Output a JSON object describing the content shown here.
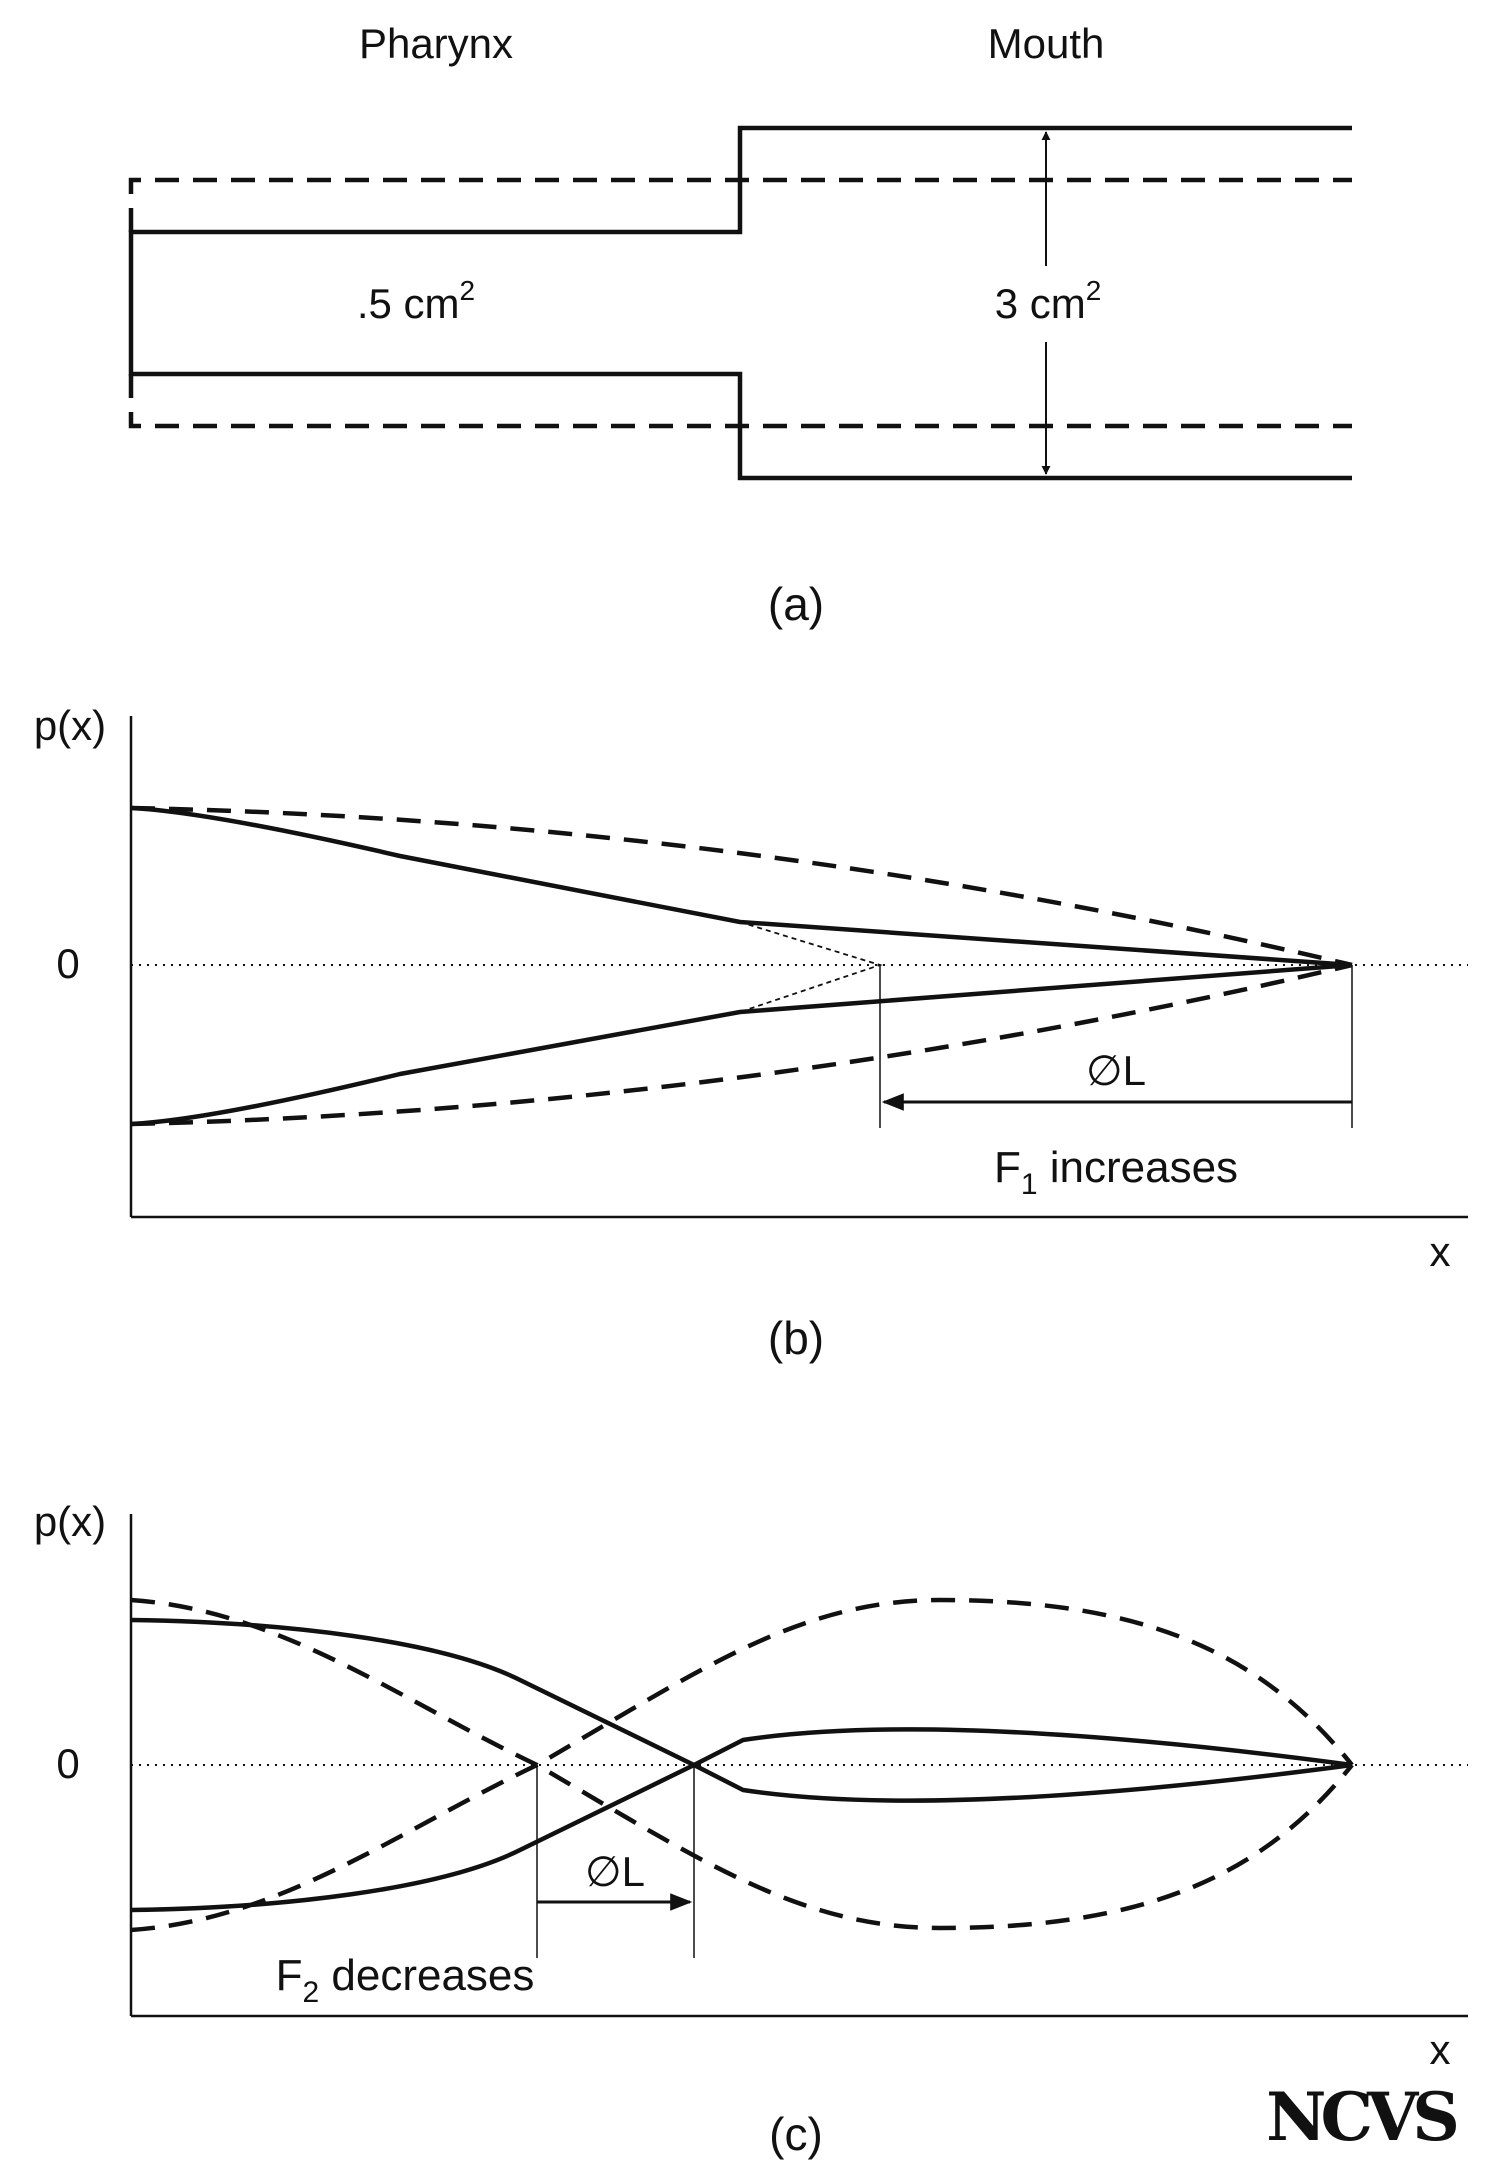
{
  "panel_a": {
    "pharynx_label": "Pharynx",
    "mouth_label": "Mouth",
    "pharynx_area_value": ".5 cm",
    "pharynx_area_exponent": "2",
    "mouth_area_value": "3 cm",
    "mouth_area_exponent": "2",
    "caption": "(a)"
  },
  "panel_b": {
    "ylabel": "p(x)",
    "xlabel": "x",
    "zero_label": "0",
    "delta_label": "∅L",
    "formant_prefix": "F",
    "formant_sub": "1",
    "formant_suffix": " increases",
    "caption": "(b)"
  },
  "panel_c": {
    "ylabel": "p(x)",
    "xlabel": "x",
    "zero_label": "0",
    "delta_label": "∅L",
    "formant_prefix": "F",
    "formant_sub": "2",
    "formant_suffix": " decreases",
    "caption": "(c)"
  },
  "logo": {
    "text": "NCVS"
  },
  "colors": {
    "ink": "#111111",
    "background": "#ffffff"
  }
}
